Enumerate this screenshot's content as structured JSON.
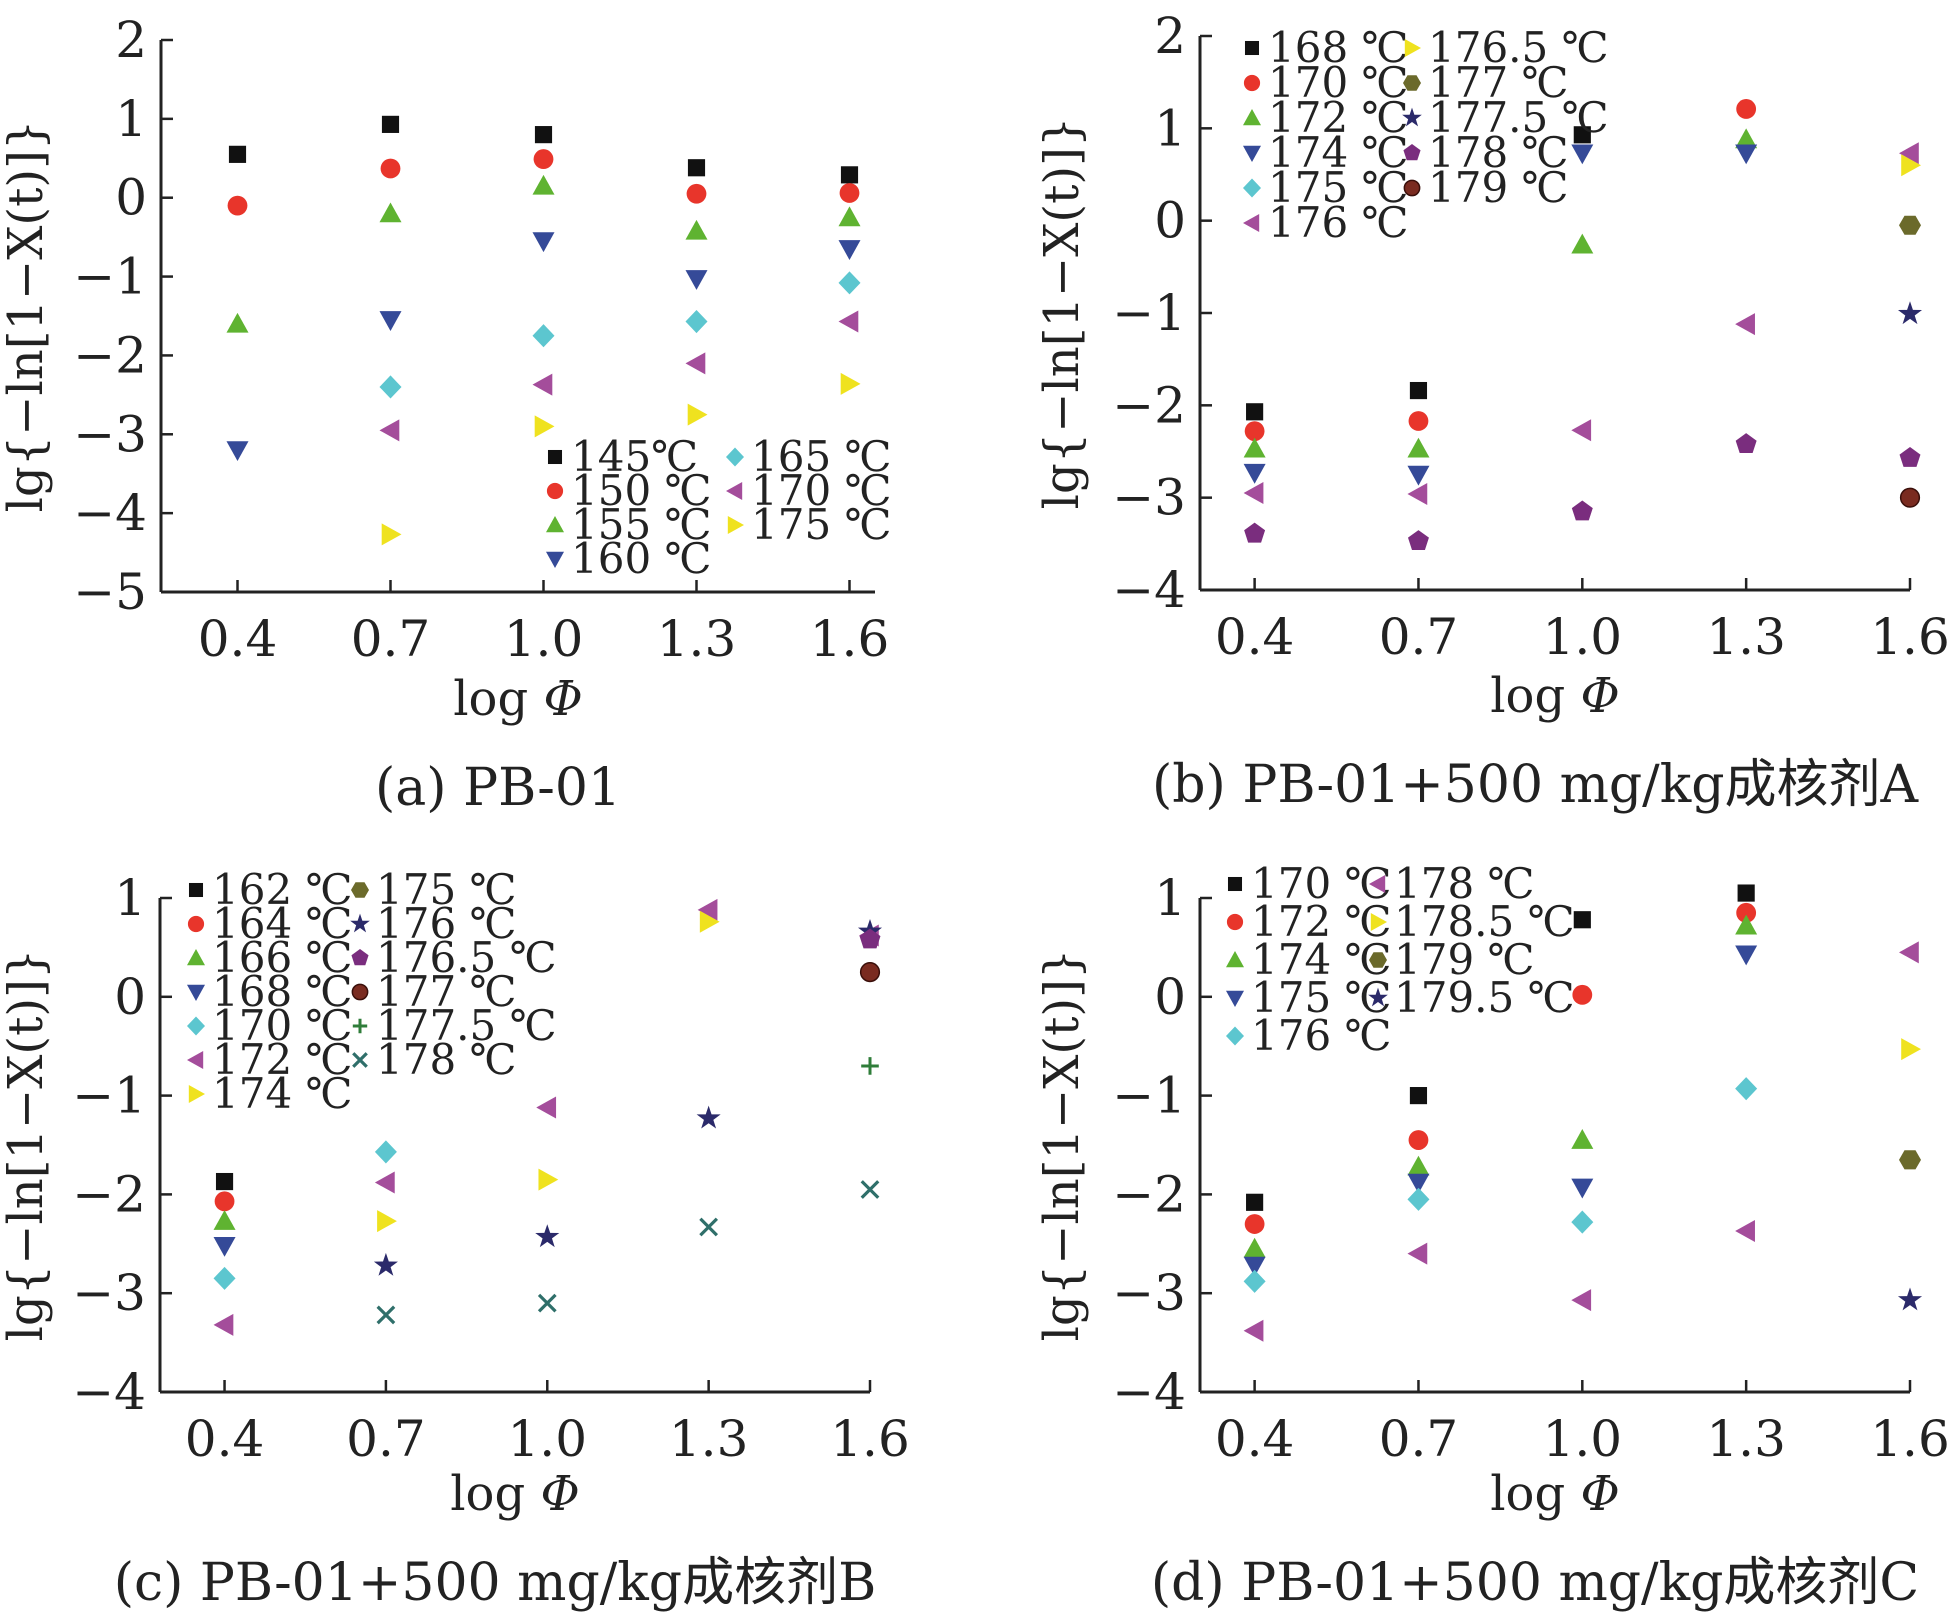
{
  "figure": {
    "panels": [
      {
        "id": "a",
        "caption": "(a) PB-01",
        "xlabel_text": "log",
        "xlabel_symbol": "Φ",
        "ylabel": "lg{−ln[1−X(t)]}"
      },
      {
        "id": "b",
        "caption": "(b) PB-01+500 mg/kg成核剂A",
        "xlabel_text": "log",
        "xlabel_symbol": "Φ",
        "ylabel": "lg{−ln[1−X(t)]}"
      },
      {
        "id": "c",
        "caption": "(c) PB-01+500 mg/kg成核剂B",
        "xlabel_text": "log",
        "xlabel_symbol": "Φ",
        "ylabel": "lg{−ln[1−X(t)]}"
      },
      {
        "id": "d",
        "caption": "(d) PB-01+500 mg/kg成核剂C",
        "xlabel_text": "log",
        "xlabel_symbol": "Φ",
        "ylabel": "lg{−ln[1−X(t)]}"
      }
    ]
  },
  "chart_data": [
    {
      "type": "scatter",
      "title": "(a) PB-01",
      "xlabel": "log Φ",
      "ylabel": "lg{−ln[1−X(t)]}",
      "xlim": [
        0.25,
        1.65
      ],
      "ylim": [
        -5,
        2
      ],
      "xticks": [
        "0.4",
        "0.7",
        "1.0",
        "1.3",
        "1.6"
      ],
      "yticks": [
        "2",
        "1",
        "0",
        "−1",
        "−2",
        "−3",
        "−4",
        "−5"
      ],
      "legend_position": "bottom-right",
      "series": [
        {
          "name": "145℃",
          "marker": "square",
          "color": "#111111",
          "points": [
            [
              0.4,
              0.55
            ],
            [
              0.7,
              0.93
            ],
            [
              1.0,
              0.8
            ],
            [
              1.3,
              0.38
            ],
            [
              1.6,
              0.29
            ]
          ]
        },
        {
          "name": "150 ℃",
          "marker": "circle",
          "color": "#e8352b",
          "points": [
            [
              0.4,
              -0.1
            ],
            [
              0.7,
              0.37
            ],
            [
              1.0,
              0.49
            ],
            [
              1.3,
              0.05
            ],
            [
              1.6,
              0.06
            ]
          ]
        },
        {
          "name": "155 ℃",
          "marker": "triangle-up",
          "color": "#5fb331",
          "points": [
            [
              0.4,
              -1.6
            ],
            [
              0.7,
              -0.2
            ],
            [
              1.0,
              0.15
            ],
            [
              1.3,
              -0.42
            ],
            [
              1.6,
              -0.25
            ]
          ]
        },
        {
          "name": "160 ℃",
          "marker": "triangle-down",
          "color": "#354a98",
          "points": [
            [
              0.4,
              -3.2
            ],
            [
              0.7,
              -1.55
            ],
            [
              1.0,
              -0.55
            ],
            [
              1.3,
              -1.03
            ],
            [
              1.6,
              -0.65
            ]
          ]
        },
        {
          "name": "165 ℃",
          "marker": "diamond",
          "color": "#5cc6cf",
          "points": [
            [
              0.7,
              -2.4
            ],
            [
              1.0,
              -1.75
            ],
            [
              1.3,
              -1.57
            ],
            [
              1.6,
              -1.08
            ]
          ]
        },
        {
          "name": "170 ℃",
          "marker": "triangle-left",
          "color": "#a44d9b",
          "points": [
            [
              0.7,
              -2.95
            ],
            [
              1.0,
              -2.37
            ],
            [
              1.3,
              -2.1
            ],
            [
              1.6,
              -1.57
            ]
          ]
        },
        {
          "name": "175 ℃",
          "marker": "triangle-right",
          "color": "#efe21f",
          "points": [
            [
              0.7,
              -4.27
            ],
            [
              1.0,
              -2.9
            ],
            [
              1.3,
              -2.75
            ],
            [
              1.6,
              -2.36
            ]
          ]
        }
      ]
    },
    {
      "type": "scatter",
      "title": "(b) PB-01+500 mg/kg成核剂A",
      "xlabel": "log Φ",
      "ylabel": "lg{−ln[1−X(t)]}",
      "xlim": [
        0.3,
        1.6
      ],
      "ylim": [
        -4,
        2
      ],
      "xticks": [
        "0.4",
        "0.7",
        "1.0",
        "1.3",
        "1.6"
      ],
      "yticks": [
        "2",
        "1",
        "0",
        "−1",
        "−2",
        "−3",
        "−4"
      ],
      "legend_position": "top-left",
      "series": [
        {
          "name": "168 ℃",
          "marker": "square",
          "color": "#111111",
          "points": [
            [
              0.4,
              -2.07
            ],
            [
              0.7,
              -1.84
            ],
            [
              1.0,
              0.93
            ]
          ]
        },
        {
          "name": "170 ℃",
          "marker": "circle",
          "color": "#e8352b",
          "points": [
            [
              0.4,
              -2.28
            ],
            [
              0.7,
              -2.17
            ],
            [
              1.3,
              1.21
            ]
          ]
        },
        {
          "name": "172 ℃",
          "marker": "triangle-up",
          "color": "#5fb331",
          "points": [
            [
              0.4,
              -2.47
            ],
            [
              0.7,
              -2.47
            ],
            [
              1.0,
              -0.26
            ],
            [
              1.3,
              0.88
            ]
          ]
        },
        {
          "name": "174 ℃",
          "marker": "triangle-down",
          "color": "#354a98",
          "points": [
            [
              0.4,
              -2.73
            ],
            [
              0.7,
              -2.75
            ],
            [
              1.0,
              0.73
            ],
            [
              1.3,
              0.73
            ]
          ]
        },
        {
          "name": "175 ℃",
          "marker": "diamond",
          "color": "#5cc6cf",
          "points": []
        },
        {
          "name": "176 ℃",
          "marker": "triangle-left",
          "color": "#a44d9b",
          "points": [
            [
              0.4,
              -2.95
            ],
            [
              0.7,
              -2.96
            ],
            [
              1.0,
              -2.27
            ],
            [
              1.3,
              -1.12
            ],
            [
              1.6,
              0.73
            ]
          ]
        },
        {
          "name": "176.5 ℃",
          "marker": "triangle-right",
          "color": "#efe21f",
          "points": [
            [
              1.6,
              0.6
            ]
          ]
        },
        {
          "name": "177 ℃",
          "marker": "hexagon",
          "color": "#6b6a2b",
          "points": [
            [
              1.6,
              -0.05
            ]
          ]
        },
        {
          "name": "177.5 ℃",
          "marker": "star",
          "color": "#2b2a6a",
          "points": [
            [
              1.6,
              -1.01
            ]
          ]
        },
        {
          "name": "178 ℃",
          "marker": "pentagon",
          "color": "#7a2d7e",
          "points": [
            [
              0.4,
              -3.39
            ],
            [
              0.7,
              -3.47
            ],
            [
              1.0,
              -3.15
            ],
            [
              1.3,
              -2.42
            ],
            [
              1.6,
              -2.57
            ]
          ]
        },
        {
          "name": "179 ℃",
          "marker": "sphere",
          "color": "#7a2b20",
          "points": [
            [
              1.6,
              -3.0
            ]
          ]
        }
      ]
    },
    {
      "type": "scatter",
      "title": "(c) PB-01+500 mg/kg成核剂B",
      "xlabel": "log Φ",
      "ylabel": "lg{−ln[1−X(t)]}",
      "xlim": [
        0.28,
        1.6
      ],
      "ylim": [
        -4,
        1
      ],
      "xticks": [
        "0.4",
        "0.7",
        "1.0",
        "1.3",
        "1.6"
      ],
      "yticks": [
        "1",
        "0",
        "−1",
        "−2",
        "−3",
        "−4"
      ],
      "legend_position": "top-left",
      "series": [
        {
          "name": "162 ℃",
          "marker": "square",
          "color": "#111111",
          "points": [
            [
              0.4,
              -1.87
            ]
          ]
        },
        {
          "name": "164 ℃",
          "marker": "circle",
          "color": "#e8352b",
          "points": [
            [
              0.4,
              -2.07
            ]
          ]
        },
        {
          "name": "166 ℃",
          "marker": "triangle-up",
          "color": "#5fb331",
          "points": [
            [
              0.4,
              -2.27
            ]
          ]
        },
        {
          "name": "168 ℃",
          "marker": "triangle-down",
          "color": "#354a98",
          "points": [
            [
              0.4,
              -2.52
            ]
          ]
        },
        {
          "name": "170 ℃",
          "marker": "diamond",
          "color": "#5cc6cf",
          "points": [
            [
              0.4,
              -2.85
            ],
            [
              0.7,
              -1.57
            ]
          ]
        },
        {
          "name": "172 ℃",
          "marker": "triangle-left",
          "color": "#a44d9b",
          "points": [
            [
              0.4,
              -3.32
            ],
            [
              0.7,
              -1.88
            ],
            [
              1.0,
              -1.12
            ],
            [
              1.3,
              0.88
            ],
            [
              1.6,
              0.62
            ]
          ]
        },
        {
          "name": "174 ℃",
          "marker": "triangle-right",
          "color": "#efe21f",
          "points": [
            [
              0.7,
              -2.27
            ],
            [
              1.0,
              -1.85
            ],
            [
              1.3,
              0.76
            ]
          ]
        },
        {
          "name": "175 ℃",
          "marker": "hexagon",
          "color": "#6b6a2b",
          "points": []
        },
        {
          "name": "176 ℃",
          "marker": "star",
          "color": "#2b2a6a",
          "points": [
            [
              0.7,
              -2.72
            ],
            [
              1.0,
              -2.43
            ],
            [
              1.3,
              -1.23
            ],
            [
              1.6,
              0.66
            ]
          ]
        },
        {
          "name": "176.5 ℃",
          "marker": "pentagon",
          "color": "#7a2d7e",
          "points": [
            [
              1.6,
              0.58
            ]
          ]
        },
        {
          "name": "177 ℃",
          "marker": "sphere",
          "color": "#7a2b20",
          "points": [
            [
              1.6,
              0.25
            ]
          ]
        },
        {
          "name": "177.5 ℃",
          "marker": "plus",
          "color": "#2f7d3a",
          "points": [
            [
              1.6,
              -0.7
            ]
          ]
        },
        {
          "name": "178 ℃",
          "marker": "cross",
          "color": "#2f6f6a",
          "points": [
            [
              0.7,
              -3.22
            ],
            [
              1.0,
              -3.1
            ],
            [
              1.3,
              -2.33
            ],
            [
              1.6,
              -1.95
            ]
          ]
        }
      ]
    },
    {
      "type": "scatter",
      "title": "(d) PB-01+500 mg/kg成核剂C",
      "xlabel": "log Φ",
      "ylabel": "lg{−ln[1−X(t)]}",
      "xlim": [
        0.3,
        1.6
      ],
      "ylim": [
        -4,
        1
      ],
      "xticks": [
        "0.4",
        "0.7",
        "1.0",
        "1.3",
        "1.6"
      ],
      "yticks": [
        "1",
        "0",
        "−1",
        "−2",
        "−3",
        "−4"
      ],
      "legend_position": "top-left",
      "series": [
        {
          "name": "170 ℃",
          "marker": "square",
          "color": "#111111",
          "points": [
            [
              0.4,
              -2.08
            ],
            [
              0.7,
              -1.0
            ],
            [
              1.0,
              0.78
            ],
            [
              1.3,
              1.05
            ]
          ]
        },
        {
          "name": "172 ℃",
          "marker": "circle",
          "color": "#e8352b",
          "points": [
            [
              0.4,
              -2.3
            ],
            [
              0.7,
              -1.45
            ],
            [
              1.0,
              0.02
            ],
            [
              1.3,
              0.85
            ]
          ]
        },
        {
          "name": "174 ℃",
          "marker": "triangle-up",
          "color": "#5fb331",
          "points": [
            [
              0.4,
              -2.55
            ],
            [
              0.7,
              -1.72
            ],
            [
              1.0,
              -1.45
            ],
            [
              1.3,
              0.72
            ]
          ]
        },
        {
          "name": "175 ℃",
          "marker": "triangle-down",
          "color": "#354a98",
          "points": [
            [
              0.4,
              -2.72
            ],
            [
              0.7,
              -1.88
            ],
            [
              1.0,
              -1.93
            ],
            [
              1.3,
              0.43
            ]
          ]
        },
        {
          "name": "176 ℃",
          "marker": "diamond",
          "color": "#5cc6cf",
          "points": [
            [
              0.4,
              -2.88
            ],
            [
              0.7,
              -2.05
            ],
            [
              1.0,
              -2.28
            ],
            [
              1.3,
              -0.93
            ]
          ]
        },
        {
          "name": "178 ℃",
          "marker": "triangle-left",
          "color": "#a44d9b",
          "points": [
            [
              0.4,
              -3.38
            ],
            [
              0.7,
              -2.6
            ],
            [
              1.0,
              -3.07
            ],
            [
              1.3,
              -2.37
            ],
            [
              1.6,
              0.45
            ]
          ]
        },
        {
          "name": "178.5 ℃",
          "marker": "triangle-right",
          "color": "#efe21f",
          "points": [
            [
              1.6,
              -0.53
            ]
          ]
        },
        {
          "name": "179 ℃",
          "marker": "hexagon",
          "color": "#6b6a2b",
          "points": [
            [
              1.6,
              -1.65
            ]
          ]
        },
        {
          "name": "179.5 ℃",
          "marker": "star",
          "color": "#2b2a6a",
          "points": [
            [
              1.6,
              -3.07
            ]
          ]
        }
      ]
    }
  ]
}
